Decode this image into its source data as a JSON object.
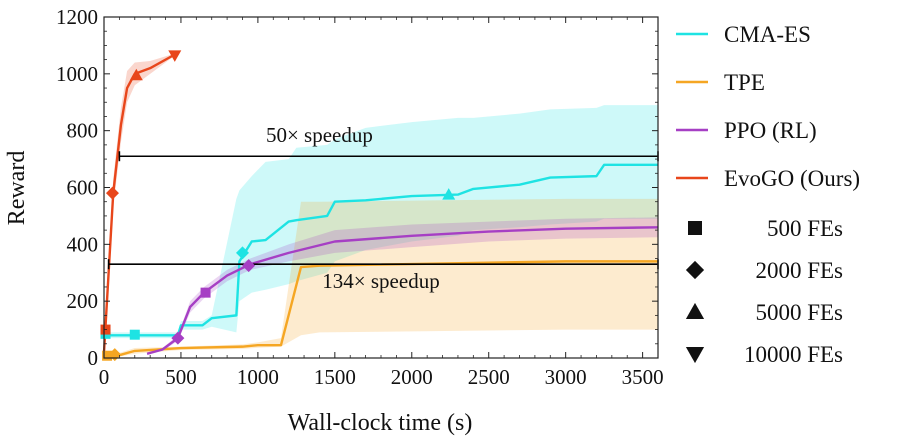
{
  "chart_data": {
    "type": "line",
    "xlabel": "Wall-clock time (s)",
    "ylabel": "Reward",
    "xlim": [
      0,
      3600
    ],
    "ylim": [
      0,
      1200
    ],
    "xticks": [
      0,
      500,
      1000,
      1500,
      2000,
      2500,
      3000,
      3500
    ],
    "yticks": [
      0,
      200,
      400,
      600,
      800,
      1000,
      1200
    ],
    "grid": false,
    "legend_position": "right",
    "series": [
      {
        "name": "CMA-ES",
        "color": "#1ee3e3",
        "x": [
          0,
          480,
          500,
          640,
          700,
          860,
          880,
          960,
          1050,
          1200,
          1250,
          1450,
          1500,
          1700,
          2000,
          2300,
          2400,
          2700,
          2900,
          3200,
          3250,
          3600
        ],
        "y": [
          80,
          80,
          115,
          115,
          140,
          150,
          340,
          410,
          415,
          480,
          485,
          500,
          550,
          555,
          570,
          575,
          595,
          610,
          635,
          640,
          680,
          680
        ],
        "band_upper": [
          90,
          90,
          130,
          130,
          150,
          560,
          590,
          640,
          690,
          700,
          740,
          750,
          770,
          810,
          830,
          845,
          845,
          860,
          875,
          880,
          890,
          890
        ],
        "band_lower": [
          70,
          70,
          100,
          100,
          110,
          90,
          200,
          230,
          240,
          260,
          270,
          300,
          340,
          380,
          410,
          430,
          450,
          460,
          470,
          480,
          490,
          490
        ]
      },
      {
        "name": "TPE",
        "color": "#f5a623",
        "x": [
          0,
          100,
          200,
          500,
          900,
          1000,
          1150,
          1280,
          1400,
          3000,
          3600
        ],
        "y": [
          5,
          10,
          25,
          35,
          40,
          45,
          45,
          320,
          325,
          340,
          340
        ],
        "band_upper": [
          10,
          18,
          35,
          40,
          48,
          55,
          70,
          550,
          550,
          560,
          560
        ],
        "band_lower": [
          0,
          5,
          15,
          28,
          32,
          36,
          40,
          80,
          90,
          100,
          100
        ]
      },
      {
        "name": "PPO (RL)",
        "color": "#a63fc4",
        "x": [
          280,
          380,
          480,
          560,
          650,
          800,
          950,
          1200,
          1500,
          2000,
          2500,
          3000,
          3600
        ],
        "y": [
          15,
          30,
          70,
          180,
          230,
          290,
          330,
          370,
          410,
          430,
          445,
          455,
          460
        ],
        "band_upper": [
          20,
          35,
          80,
          200,
          250,
          310,
          350,
          400,
          450,
          470,
          480,
          490,
          495
        ],
        "band_lower": [
          10,
          25,
          60,
          160,
          210,
          270,
          310,
          340,
          370,
          390,
          410,
          420,
          425
        ]
      },
      {
        "name": "EvoGO (Ours)",
        "color": "#e8461b",
        "x": [
          0,
          30,
          60,
          110,
          150,
          200,
          300,
          450
        ],
        "y": [
          20,
          300,
          580,
          820,
          950,
          1000,
          1020,
          1065
        ],
        "band_upper": [
          25,
          340,
          630,
          880,
          1010,
          1040,
          1045,
          1070
        ],
        "band_lower": [
          15,
          260,
          530,
          760,
          900,
          960,
          1000,
          1060
        ]
      }
    ],
    "markers": [
      {
        "series": "CMA-ES",
        "shape": "square",
        "x": 10,
        "y": 85
      },
      {
        "series": "CMA-ES",
        "shape": "square",
        "x": 200,
        "y": 82
      },
      {
        "series": "CMA-ES",
        "shape": "diamond",
        "x": 900,
        "y": 370
      },
      {
        "series": "CMA-ES",
        "shape": "triangle-up",
        "x": 2240,
        "y": 575
      },
      {
        "series": "TPE",
        "shape": "square",
        "x": 20,
        "y": 8
      },
      {
        "series": "TPE",
        "shape": "diamond",
        "x": 70,
        "y": 12
      },
      {
        "series": "PPO (RL)",
        "shape": "diamond",
        "x": 480,
        "y": 70
      },
      {
        "series": "PPO (RL)",
        "shape": "square",
        "x": 660,
        "y": 230
      },
      {
        "series": "PPO (RL)",
        "shape": "diamond",
        "x": 940,
        "y": 325
      },
      {
        "series": "EvoGO (Ours)",
        "shape": "square",
        "x": 10,
        "y": 100
      },
      {
        "series": "EvoGO (Ours)",
        "shape": "diamond",
        "x": 55,
        "y": 580
      },
      {
        "series": "EvoGO (Ours)",
        "shape": "triangle-up",
        "x": 210,
        "y": 995
      },
      {
        "series": "EvoGO (Ours)",
        "shape": "triangle-down",
        "x": 460,
        "y": 1065
      }
    ],
    "annotations": [
      {
        "text": "50× speedup",
        "y": 710,
        "x_start": 100,
        "x_end": 3600
      },
      {
        "text": "134× speedup",
        "y": 330,
        "x_start": 30,
        "x_end": 3600
      }
    ],
    "marker_legend": [
      {
        "shape": "square",
        "label": "500 FEs"
      },
      {
        "shape": "diamond",
        "label": "2000 FEs"
      },
      {
        "shape": "triangle-up",
        "label": "5000 FEs"
      },
      {
        "shape": "triangle-down",
        "label": "10000 FEs"
      }
    ]
  }
}
